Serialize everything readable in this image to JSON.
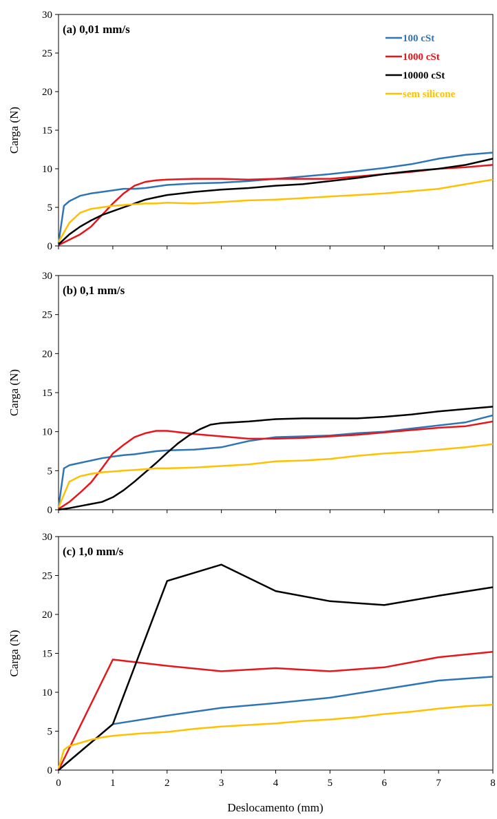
{
  "figure": {
    "xlabel": "Deslocamento  (mm)",
    "ylabel": "Carga (N)"
  },
  "legend": [
    {
      "label": "100 cSt",
      "color": "#2e75b6"
    },
    {
      "label": "1000 cSt",
      "color": "#e8151a"
    },
    {
      "label": "10000 cSt",
      "color": "#000000"
    },
    {
      "label": "sem silicone",
      "color": "#ffc000"
    }
  ],
  "chart_data": [
    {
      "type": "line",
      "title": "(a) 0,01 mm/s",
      "xlabel": "",
      "ylabel": "Carga (N)",
      "xlim": [
        0,
        8
      ],
      "ylim": [
        0,
        30
      ],
      "xticks": [
        0,
        1,
        2,
        3,
        4,
        5,
        6,
        7,
        8
      ],
      "yticks": [
        0,
        5,
        10,
        15,
        20,
        25,
        30
      ],
      "grid": false,
      "legend_position": "top-right",
      "series": [
        {
          "name": "100 cSt",
          "color": "#2e75b6",
          "x": [
            0,
            0.1,
            0.2,
            0.4,
            0.6,
            0.8,
            1.0,
            1.2,
            1.4,
            1.6,
            1.8,
            2.0,
            2.5,
            3.0,
            3.5,
            4.0,
            4.5,
            5.0,
            5.5,
            6.0,
            6.5,
            7.0,
            7.5,
            8.0
          ],
          "y": [
            0.3,
            5.2,
            5.8,
            6.5,
            6.8,
            7.0,
            7.2,
            7.4,
            7.4,
            7.5,
            7.7,
            7.9,
            8.1,
            8.2,
            8.4,
            8.7,
            9.0,
            9.3,
            9.7,
            10.1,
            10.6,
            11.3,
            11.8,
            12.1
          ]
        },
        {
          "name": "1000 cSt",
          "color": "#e8151a",
          "x": [
            0,
            0.2,
            0.4,
            0.6,
            0.8,
            1.0,
            1.2,
            1.4,
            1.6,
            1.8,
            2.0,
            2.5,
            3.0,
            3.5,
            4.0,
            4.5,
            5.0,
            5.5,
            6.0,
            6.5,
            7.0,
            7.5,
            8.0
          ],
          "y": [
            0.1,
            0.8,
            1.5,
            2.5,
            4.0,
            5.5,
            6.8,
            7.8,
            8.3,
            8.5,
            8.6,
            8.7,
            8.7,
            8.6,
            8.7,
            8.7,
            8.7,
            9.0,
            9.3,
            9.6,
            10.0,
            10.2,
            10.5
          ]
        },
        {
          "name": "10000 cSt",
          "color": "#000000",
          "x": [
            0,
            0.2,
            0.4,
            0.6,
            0.8,
            1.0,
            1.2,
            1.4,
            1.6,
            1.8,
            2.0,
            2.5,
            3.0,
            3.5,
            4.0,
            4.5,
            5.0,
            5.5,
            6.0,
            6.5,
            7.0,
            7.5,
            8.0
          ],
          "y": [
            0.2,
            1.5,
            2.5,
            3.3,
            4.0,
            4.5,
            5.0,
            5.5,
            6.0,
            6.3,
            6.6,
            7.0,
            7.3,
            7.5,
            7.8,
            8.0,
            8.4,
            8.8,
            9.3,
            9.7,
            10.0,
            10.5,
            11.3
          ]
        },
        {
          "name": "sem silicone",
          "color": "#ffc000",
          "x": [
            0,
            0.2,
            0.4,
            0.6,
            0.8,
            1.0,
            1.2,
            1.4,
            1.6,
            1.8,
            2.0,
            2.5,
            3.0,
            3.5,
            4.0,
            4.5,
            5.0,
            5.5,
            6.0,
            6.5,
            7.0,
            7.5,
            8.0
          ],
          "y": [
            0.5,
            3.0,
            4.3,
            4.8,
            5.0,
            5.2,
            5.3,
            5.4,
            5.5,
            5.5,
            5.6,
            5.5,
            5.7,
            5.9,
            6.0,
            6.2,
            6.4,
            6.6,
            6.8,
            7.1,
            7.4,
            8.0,
            8.6
          ]
        }
      ]
    },
    {
      "type": "line",
      "title": "(b) 0,1 mm/s",
      "xlabel": "",
      "ylabel": "Carga (N)",
      "xlim": [
        0,
        8
      ],
      "ylim": [
        0,
        30
      ],
      "xticks": [
        0,
        1,
        2,
        3,
        4,
        5,
        6,
        7,
        8
      ],
      "yticks": [
        0,
        5,
        10,
        15,
        20,
        25,
        30
      ],
      "grid": false,
      "series": [
        {
          "name": "100 cSt",
          "color": "#2e75b6",
          "x": [
            0,
            0.1,
            0.2,
            0.4,
            0.6,
            0.8,
            1.0,
            1.2,
            1.4,
            1.6,
            1.8,
            2.0,
            2.5,
            3.0,
            3.5,
            4.0,
            4.5,
            5.0,
            5.5,
            6.0,
            6.5,
            7.0,
            7.5,
            8.0
          ],
          "y": [
            0.3,
            5.3,
            5.7,
            6.0,
            6.3,
            6.6,
            6.8,
            7.0,
            7.1,
            7.3,
            7.5,
            7.6,
            7.7,
            8.0,
            8.8,
            9.3,
            9.4,
            9.5,
            9.8,
            10.0,
            10.4,
            10.8,
            11.2,
            12.1
          ]
        },
        {
          "name": "1000 cSt",
          "color": "#e8151a",
          "x": [
            0,
            0.2,
            0.4,
            0.6,
            0.8,
            1.0,
            1.2,
            1.4,
            1.6,
            1.8,
            2.0,
            2.5,
            3.0,
            3.5,
            4.0,
            4.5,
            5.0,
            5.5,
            6.0,
            6.5,
            7.0,
            7.5,
            8.0
          ],
          "y": [
            0.1,
            1.0,
            2.2,
            3.5,
            5.3,
            7.2,
            8.3,
            9.3,
            9.8,
            10.1,
            10.1,
            9.7,
            9.4,
            9.1,
            9.1,
            9.2,
            9.4,
            9.6,
            9.9,
            10.2,
            10.5,
            10.7,
            11.3
          ]
        },
        {
          "name": "10000 cSt",
          "color": "#000000",
          "x": [
            0,
            0.2,
            0.5,
            0.8,
            1.0,
            1.2,
            1.4,
            1.6,
            1.8,
            2.0,
            2.2,
            2.4,
            2.6,
            2.8,
            3.0,
            3.5,
            4.0,
            4.5,
            5.0,
            5.5,
            6.0,
            6.5,
            7.0,
            7.5,
            8.0
          ],
          "y": [
            0.0,
            0.2,
            0.6,
            1.0,
            1.6,
            2.5,
            3.6,
            4.8,
            6.0,
            7.3,
            8.5,
            9.5,
            10.3,
            10.9,
            11.1,
            11.3,
            11.6,
            11.7,
            11.7,
            11.7,
            11.9,
            12.2,
            12.6,
            12.9,
            13.2
          ]
        },
        {
          "name": "sem silicone",
          "color": "#ffc000",
          "x": [
            0,
            0.2,
            0.4,
            0.6,
            0.8,
            1.0,
            1.2,
            1.4,
            1.6,
            1.8,
            2.0,
            2.5,
            3.0,
            3.5,
            4.0,
            4.5,
            5.0,
            5.5,
            6.0,
            6.5,
            7.0,
            7.5,
            8.0
          ],
          "y": [
            0.3,
            3.6,
            4.3,
            4.6,
            4.8,
            4.9,
            5.0,
            5.1,
            5.2,
            5.3,
            5.3,
            5.4,
            5.6,
            5.8,
            6.2,
            6.3,
            6.5,
            6.9,
            7.2,
            7.4,
            7.7,
            8.0,
            8.4
          ]
        }
      ]
    },
    {
      "type": "line",
      "title": "(c) 1,0 mm/s",
      "xlabel": "Deslocamento  (mm)",
      "ylabel": "Carga (N)",
      "xlim": [
        0,
        8
      ],
      "ylim": [
        0,
        30
      ],
      "xticks": [
        0,
        1,
        2,
        3,
        4,
        5,
        6,
        7,
        8
      ],
      "yticks": [
        0,
        5,
        10,
        15,
        20,
        25,
        30
      ],
      "grid": false,
      "series": [
        {
          "name": "100 cSt",
          "color": "#2e75b6",
          "x": [
            0,
            1,
            2,
            3,
            4,
            5,
            6,
            7,
            8
          ],
          "y": [
            0,
            5.9,
            7.0,
            8.0,
            8.6,
            9.3,
            10.4,
            11.5,
            12.0
          ]
        },
        {
          "name": "1000 cSt",
          "color": "#e8151a",
          "x": [
            0,
            1,
            2,
            3,
            4,
            5,
            6,
            7,
            8
          ],
          "y": [
            0,
            14.2,
            13.4,
            12.7,
            13.1,
            12.7,
            13.2,
            14.5,
            15.2
          ]
        },
        {
          "name": "10000 cSt",
          "color": "#000000",
          "x": [
            0,
            1,
            2,
            3,
            4,
            5,
            6,
            7,
            8
          ],
          "y": [
            0,
            5.9,
            24.3,
            26.4,
            23.0,
            21.7,
            21.2,
            22.4,
            23.5
          ]
        },
        {
          "name": "sem silicone",
          "color": "#ffc000",
          "x": [
            0,
            0.1,
            0.2,
            0.4,
            0.6,
            0.8,
            1.0,
            1.5,
            2.0,
            2.5,
            3.0,
            3.5,
            4.0,
            4.5,
            5.0,
            5.5,
            6.0,
            6.5,
            7.0,
            7.5,
            8.0
          ],
          "y": [
            0.2,
            2.6,
            3.1,
            3.5,
            3.9,
            4.2,
            4.4,
            4.7,
            4.9,
            5.3,
            5.6,
            5.8,
            6.0,
            6.3,
            6.5,
            6.8,
            7.2,
            7.5,
            7.9,
            8.2,
            8.4
          ]
        }
      ]
    }
  ]
}
